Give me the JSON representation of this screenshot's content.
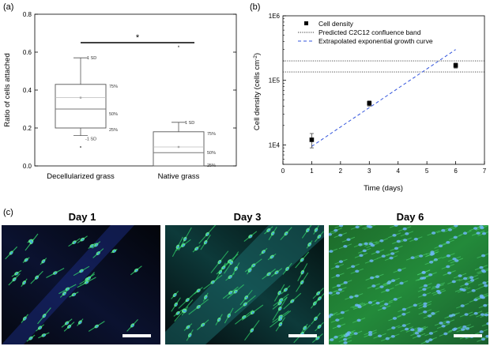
{
  "chart_data": [
    {
      "panel": "(a)",
      "type": "box",
      "ylabel": "Ratio of cells attached",
      "ylim": [
        0,
        0.8
      ],
      "yticks": [
        "0.0",
        "0.2",
        "0.4",
        "0.6",
        "0.8"
      ],
      "categories": [
        "Decellularized grass",
        "Native grass"
      ],
      "boxes": [
        {
          "category": "Decellularized grass",
          "whisker_low": 0.16,
          "q1": 0.2,
          "median": 0.3,
          "mean": 0.36,
          "q3": 0.43,
          "whisker_high": 0.57,
          "outliers": [
            0.1
          ],
          "labels": {
            "sd_high": "1 SD",
            "p75": "75%",
            "p50": "50%",
            "p25": "25%",
            "sd_low": "-1 SD"
          }
        },
        {
          "category": "Native grass",
          "whisker_low": 0.0,
          "q1": 0.0,
          "median": 0.07,
          "mean": 0.1,
          "q3": 0.18,
          "whisker_high": 0.23,
          "outliers": [
            0.63
          ],
          "labels": {
            "sd_high": "1 SD",
            "p75": "75%",
            "p50": "50%",
            "p25": "25%"
          }
        }
      ],
      "significance": "*"
    },
    {
      "panel": "(b)",
      "type": "scatter",
      "xlabel": "Time (days)",
      "ylabel": "Cell density (cells cm⁻²)",
      "ylabel_prefix": "Cell density (cells cm",
      "ylabel_sup": "-2",
      "ylabel_suffix": ")",
      "xlim": [
        0,
        7
      ],
      "ylim": [
        5000,
        1000000
      ],
      "yscale": "log",
      "xticks": [
        "0",
        "1",
        "2",
        "3",
        "4",
        "5",
        "6",
        "7"
      ],
      "yticks": [
        "1E4",
        "1E5",
        "1E6"
      ],
      "series": [
        {
          "name": "Cell density",
          "x": [
            1,
            3,
            6
          ],
          "y": [
            12000,
            44000,
            170000
          ],
          "err": [
            3000,
            4000,
            15000
          ]
        }
      ],
      "band": {
        "name": "Predicted C2C12 confluence band",
        "y": [
          135000,
          200000
        ]
      },
      "fit": {
        "name": "Extrapolated exponential growth curve",
        "x": [
          1,
          6
        ],
        "y": [
          9500,
          300000
        ]
      }
    }
  ],
  "micrographs": {
    "panel_label": "(c)",
    "titles": [
      "Day 1",
      "Day 3",
      "Day 6"
    ]
  },
  "colors": {
    "box_edge": "#555555",
    "median_line": "#777777",
    "mean_line": "#bbbbbb",
    "fit_line": "#3355dd",
    "band_line": "#333333",
    "cell_green": "#31d66b",
    "nucleus_blue": "#3a8cff"
  }
}
